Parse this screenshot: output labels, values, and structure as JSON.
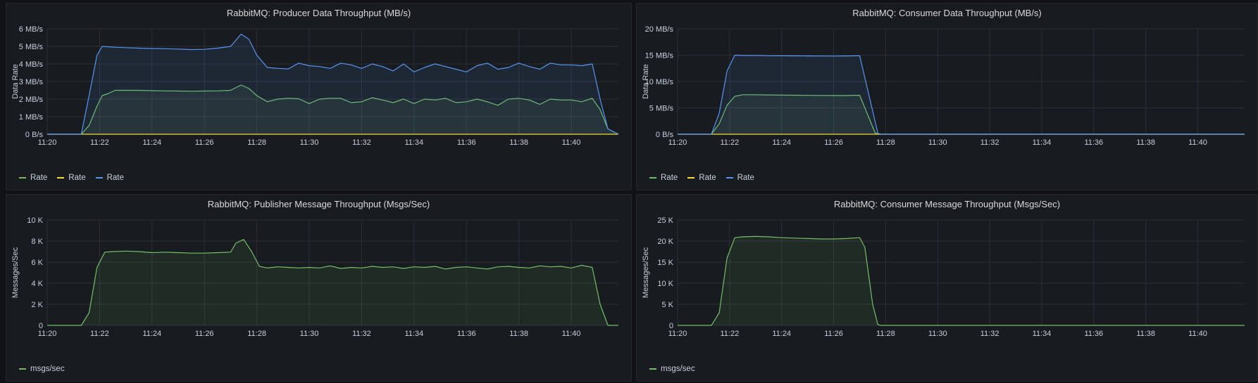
{
  "panels": [
    {
      "title": "RabbitMQ: Producer Data Throughput (MB/s)",
      "chart_data": {
        "type": "area",
        "ylabel": "Data Rate",
        "ylim": [
          0,
          6
        ],
        "yticks": [
          0,
          1,
          2,
          3,
          4,
          5,
          6
        ],
        "ytick_labels": [
          "0 B/s",
          "1 MB/s",
          "2 MB/s",
          "3 MB/s",
          "4 MB/s",
          "5 MB/s",
          "6 MB/s"
        ],
        "xlim": [
          "11:20",
          "11:41.8"
        ],
        "xticks": [
          "11:20",
          "11:22",
          "11:24",
          "11:26",
          "11:28",
          "11:30",
          "11:32",
          "11:34",
          "11:36",
          "11:38",
          "11:40"
        ],
        "series": [
          {
            "name": "Rate",
            "color": "#73bf69",
            "x": [
              "11:20",
              "11:21",
              "11:21.3",
              "11:21.6",
              "11:21.9",
              "11:22.1",
              "11:22.3",
              "11:22.6",
              "11:23.0",
              "11:23.5",
              "11:24.0",
              "11:24.5",
              "11:25.0",
              "11:25.5",
              "11:26.0",
              "11:26.5",
              "11:27.0",
              "11:27.4",
              "11:27.7",
              "11:28.0",
              "11:28.4",
              "11:28.8",
              "11:29.2",
              "11:29.6",
              "11:30.0",
              "11:30.4",
              "11:30.8",
              "11:31.2",
              "11:31.6",
              "11:32.0",
              "11:32.4",
              "11:32.8",
              "11:33.2",
              "11:33.6",
              "11:34.0",
              "11:34.4",
              "11:34.8",
              "11:35.2",
              "11:35.6",
              "11:36.0",
              "11:36.4",
              "11:36.8",
              "11:37.2",
              "11:37.6",
              "11:38.0",
              "11:38.4",
              "11:38.8",
              "11:39.2",
              "11:39.6",
              "11:40.0",
              "11:40.4",
              "11:40.8",
              "11:41.1",
              "11:41.4",
              "11:41.8"
            ],
            "y": [
              0,
              0,
              0,
              0.5,
              1.6,
              2.2,
              2.3,
              2.5,
              2.5,
              2.5,
              2.48,
              2.47,
              2.46,
              2.45,
              2.46,
              2.47,
              2.5,
              2.8,
              2.6,
              2.2,
              1.85,
              2.0,
              2.05,
              2.02,
              1.75,
              2.0,
              2.05,
              2.05,
              1.8,
              1.85,
              2.08,
              1.95,
              1.8,
              2.0,
              1.75,
              2.0,
              1.95,
              2.05,
              1.8,
              1.85,
              2.0,
              1.85,
              1.65,
              2.0,
              2.05,
              1.95,
              1.7,
              2.0,
              1.95,
              1.95,
              1.85,
              2.05,
              1.4,
              0.3,
              0
            ]
          },
          {
            "name": "Rate",
            "color": "#fade2a",
            "x": [
              "11:20",
              "11:41.8"
            ],
            "y": [
              0,
              0
            ]
          },
          {
            "name": "Rate",
            "color": "#5794f2",
            "x": [
              "11:20",
              "11:21",
              "11:21.3",
              "11:21.6",
              "11:21.9",
              "11:22.1",
              "11:22.3",
              "11:22.6",
              "11:23.0",
              "11:23.5",
              "11:24.0",
              "11:24.5",
              "11:25.0",
              "11:25.5",
              "11:26.0",
              "11:26.5",
              "11:27.0",
              "11:27.4",
              "11:27.7",
              "11:28.0",
              "11:28.4",
              "11:28.8",
              "11:29.2",
              "11:29.6",
              "11:30.0",
              "11:30.4",
              "11:30.8",
              "11:31.2",
              "11:31.6",
              "11:32.0",
              "11:32.4",
              "11:32.8",
              "11:33.2",
              "11:33.6",
              "11:34.0",
              "11:34.4",
              "11:34.8",
              "11:35.2",
              "11:35.6",
              "11:36.0",
              "11:36.4",
              "11:36.8",
              "11:37.2",
              "11:37.6",
              "11:38.0",
              "11:38.4",
              "11:38.8",
              "11:39.2",
              "11:39.6",
              "11:40.0",
              "11:40.4",
              "11:40.8",
              "11:41.1",
              "11:41.4",
              "11:41.8"
            ],
            "y": [
              0,
              0,
              0,
              2.2,
              4.5,
              5.0,
              4.98,
              4.95,
              4.93,
              4.9,
              4.88,
              4.87,
              4.85,
              4.82,
              4.83,
              4.9,
              5.0,
              5.7,
              5.4,
              4.5,
              3.8,
              3.75,
              3.72,
              4.05,
              3.9,
              3.85,
              3.75,
              4.05,
              3.95,
              3.75,
              4.0,
              3.85,
              3.6,
              4.0,
              3.55,
              3.8,
              4.0,
              3.85,
              3.7,
              3.55,
              3.9,
              4.05,
              3.7,
              3.8,
              4.05,
              3.85,
              3.7,
              4.05,
              3.95,
              3.95,
              3.9,
              4.0,
              2.0,
              0.3,
              0
            ]
          }
        ],
        "legend": [
          "Rate",
          "Rate",
          "Rate"
        ],
        "grid": true
      }
    },
    {
      "title": "RabbitMQ: Consumer Data Throughput (MB/s)",
      "chart_data": {
        "type": "area",
        "ylabel": "Data Rate",
        "ylim": [
          0,
          20
        ],
        "yticks": [
          0,
          5,
          10,
          15,
          20
        ],
        "ytick_labels": [
          "0 B/s",
          "5 MB/s",
          "10 MB/s",
          "15 MB/s",
          "20 MB/s"
        ],
        "xlim": [
          "11:20",
          "11:41.8"
        ],
        "xticks": [
          "11:20",
          "11:22",
          "11:24",
          "11:26",
          "11:28",
          "11:30",
          "11:32",
          "11:34",
          "11:36",
          "11:38",
          "11:40"
        ],
        "series": [
          {
            "name": "Rate",
            "color": "#73bf69",
            "x": [
              "11:20",
              "11:21.3",
              "11:21.6",
              "11:21.9",
              "11:22.2",
              "11:22.5",
              "11:23.0",
              "11:23.5",
              "11:24.0",
              "11:24.5",
              "11:25.0",
              "11:25.5",
              "11:26.0",
              "11:26.5",
              "11:27.0",
              "11:27.6",
              "11:27.8",
              "11:41.8"
            ],
            "y": [
              0,
              0,
              2.0,
              5.5,
              7.2,
              7.5,
              7.5,
              7.45,
              7.42,
              7.4,
              7.38,
              7.36,
              7.35,
              7.35,
              7.4,
              0.2,
              0,
              0
            ]
          },
          {
            "name": "Rate",
            "color": "#fade2a",
            "x": [
              "11:20",
              "11:41.8"
            ],
            "y": [
              0,
              0
            ]
          },
          {
            "name": "Rate",
            "color": "#5794f2",
            "x": [
              "11:20",
              "11:21.3",
              "11:21.6",
              "11:21.9",
              "11:22.2",
              "11:22.5",
              "11:23.0",
              "11:23.5",
              "11:24.0",
              "11:24.5",
              "11:25.0",
              "11:25.5",
              "11:26.0",
              "11:26.5",
              "11:27.0",
              "11:27.7",
              "11:27.8",
              "11:41.8"
            ],
            "y": [
              0,
              0,
              4.0,
              12.0,
              15.0,
              14.95,
              14.95,
              14.9,
              14.88,
              14.87,
              14.85,
              14.84,
              14.82,
              14.85,
              14.9,
              0.2,
              0,
              0
            ]
          }
        ],
        "legend": [
          "Rate",
          "Rate",
          "Rate"
        ],
        "grid": true
      }
    },
    {
      "title": "RabbitMQ: Publisher Message Throughput (Msgs/Sec)",
      "chart_data": {
        "type": "area",
        "ylabel": "Messages/Sec",
        "ylim": [
          0,
          10000
        ],
        "yticks": [
          0,
          2000,
          4000,
          6000,
          8000,
          10000
        ],
        "ytick_labels": [
          "0",
          "2 K",
          "4 K",
          "6 K",
          "8 K",
          "10 K"
        ],
        "xlim": [
          "11:20",
          "11:41.8"
        ],
        "xticks": [
          "11:20",
          "11:22",
          "11:24",
          "11:26",
          "11:28",
          "11:30",
          "11:32",
          "11:34",
          "11:36",
          "11:38",
          "11:40"
        ],
        "series": [
          {
            "name": "msgs/sec",
            "color": "#73bf69",
            "x": [
              "11:20",
              "11:21.3",
              "11:21.6",
              "11:21.9",
              "11:22.2",
              "11:22.5",
              "11:23.0",
              "11:23.5",
              "11:24.0",
              "11:24.5",
              "11:25.0",
              "11:25.5",
              "11:26.0",
              "11:26.5",
              "11:27.0",
              "11:27.2",
              "11:27.5",
              "11:27.8",
              "11:28.1",
              "11:28.4",
              "11:28.8",
              "11:29.2",
              "11:29.6",
              "11:30.0",
              "11:30.4",
              "11:30.8",
              "11:31.2",
              "11:31.6",
              "11:32.0",
              "11:32.4",
              "11:32.8",
              "11:33.2",
              "11:33.6",
              "11:34.0",
              "11:34.4",
              "11:34.8",
              "11:35.2",
              "11:35.6",
              "11:36.0",
              "11:36.4",
              "11:36.8",
              "11:37.2",
              "11:37.6",
              "11:38.0",
              "11:38.4",
              "11:38.8",
              "11:39.2",
              "11:39.6",
              "11:40.0",
              "11:40.4",
              "11:40.8",
              "11:41.1",
              "11:41.4",
              "11:41.8"
            ],
            "y": [
              0,
              0,
              1200,
              5500,
              6950,
              7000,
              7050,
              7000,
              6900,
              6950,
              6900,
              6850,
              6850,
              6900,
              6950,
              7800,
              8150,
              7000,
              5600,
              5450,
              5550,
              5500,
              5450,
              5500,
              5450,
              5650,
              5400,
              5500,
              5450,
              5600,
              5500,
              5550,
              5400,
              5550,
              5500,
              5600,
              5350,
              5500,
              5550,
              5450,
              5350,
              5550,
              5600,
              5500,
              5450,
              5650,
              5550,
              5600,
              5450,
              5700,
              5500,
              2000,
              0,
              0
            ]
          }
        ],
        "legend": [
          "msgs/sec"
        ],
        "grid": true
      }
    },
    {
      "title": "RabbitMQ: Consumer Message Throughput (Msgs/Sec)",
      "chart_data": {
        "type": "area",
        "ylabel": "Messages/Sec",
        "ylim": [
          0,
          25000
        ],
        "yticks": [
          0,
          5000,
          10000,
          15000,
          20000,
          25000
        ],
        "ytick_labels": [
          "0",
          "5 K",
          "10 K",
          "15 K",
          "20 K",
          "25 K"
        ],
        "xlim": [
          "11:20",
          "11:41.8"
        ],
        "xticks": [
          "11:20",
          "11:22",
          "11:24",
          "11:26",
          "11:28",
          "11:30",
          "11:32",
          "11:34",
          "11:36",
          "11:38",
          "11:40"
        ],
        "series": [
          {
            "name": "msgs/sec",
            "color": "#73bf69",
            "x": [
              "11:20",
              "11:21.3",
              "11:21.6",
              "11:21.9",
              "11:22.2",
              "11:22.5",
              "11:23.0",
              "11:23.5",
              "11:24.0",
              "11:24.5",
              "11:25.0",
              "11:25.5",
              "11:26.0",
              "11:26.5",
              "11:27.0",
              "11:27.2",
              "11:27.5",
              "11:27.7",
              "11:27.8",
              "11:41.8"
            ],
            "y": [
              0,
              0,
              3000,
              16000,
              20800,
              21000,
              21100,
              21000,
              20800,
              20700,
              20600,
              20500,
              20500,
              20600,
              20800,
              18500,
              5000,
              200,
              0,
              0
            ]
          }
        ],
        "legend": [
          "msgs/sec"
        ],
        "grid": true
      }
    }
  ]
}
